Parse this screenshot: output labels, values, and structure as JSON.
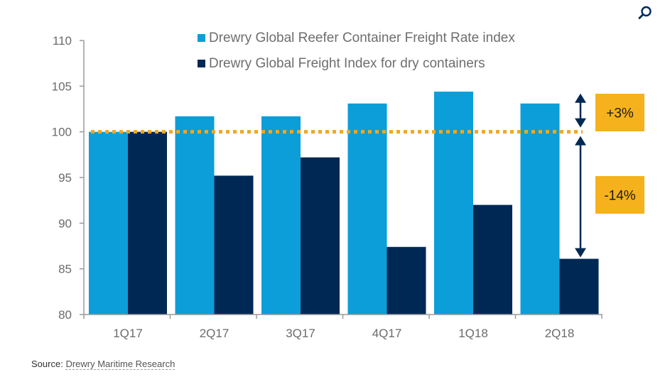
{
  "toolbar": {
    "search_icon": "search-icon"
  },
  "source": {
    "label": "Source:",
    "link_text": "Drewry Maritime Research"
  },
  "colors": {
    "reefer": "#0b9ed8",
    "dry": "#002855",
    "baseline": "#f0a820",
    "callout_bg": "#f5b21c",
    "arrow": "#002855",
    "axis": "#9a9a9a",
    "search_icon": "#002b5c"
  },
  "chart_data": {
    "type": "bar",
    "categories": [
      "1Q17",
      "2Q17",
      "3Q17",
      "4Q17",
      "1Q18",
      "2Q18"
    ],
    "series": [
      {
        "name": "Drewry Global Reefer Container Freight Rate index",
        "values": [
          100,
          101.7,
          101.7,
          103.1,
          104.4,
          103.1
        ]
      },
      {
        "name": "Drewry Global Freight Index for dry containers",
        "values": [
          100,
          95.2,
          97.2,
          87.4,
          92.0,
          86.1
        ]
      }
    ],
    "ylim": [
      80,
      110
    ],
    "yticks": [
      80,
      85,
      90,
      95,
      100,
      105,
      110
    ],
    "ytick_labels": [
      "80",
      "85",
      "90",
      "95",
      "100",
      "105",
      "110"
    ],
    "reference_line": {
      "y": 100,
      "style": "dotted"
    },
    "annotations": [
      {
        "text": "+3%",
        "from": 100,
        "to": 103.1
      },
      {
        "text": "-14%",
        "from": 86.1,
        "to": 100
      }
    ],
    "legend_position": "top-center",
    "grid": false
  }
}
